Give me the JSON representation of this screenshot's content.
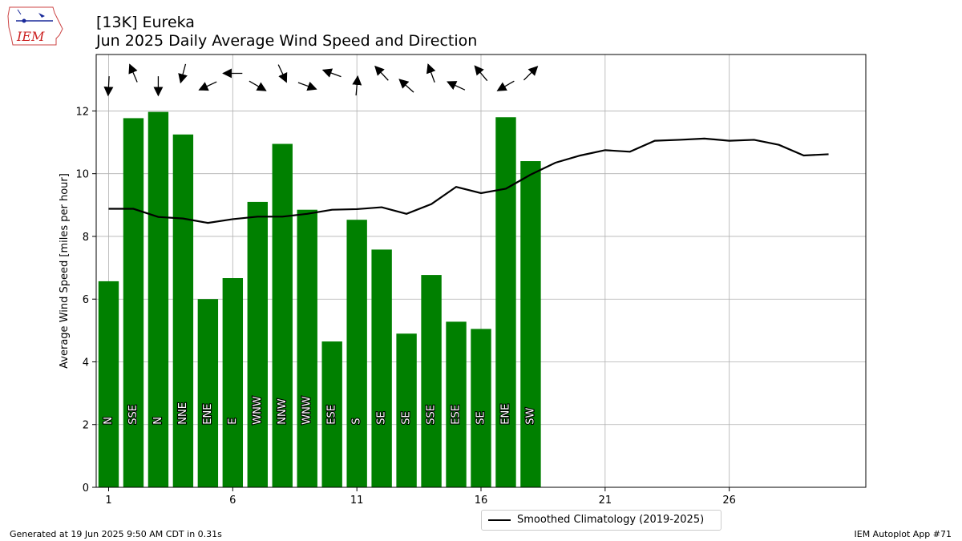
{
  "header": {
    "title_line1": "[13K] Eureka",
    "title_line2": "Jun 2025 Daily Average Wind Speed and Direction"
  },
  "footer": {
    "generated": "Generated at 19 Jun 2025 9:50 AM CDT in 0.31s",
    "app": "IEM Autoplot App #71"
  },
  "logo": {
    "text": "IEM"
  },
  "legend": {
    "label": "Smoothed Climatology (2019-2025)"
  },
  "colors": {
    "bar": "#008000",
    "line": "#000000",
    "grid": "#b0b0b0"
  },
  "chart_data": {
    "type": "bar",
    "ylabel": "Average Wind Speed [miles per hour]",
    "xlim": [
      0.5,
      31.5
    ],
    "ylim": [
      0,
      13.8
    ],
    "xticks": [
      1,
      6,
      11,
      16,
      21,
      26
    ],
    "yticks": [
      0,
      2,
      4,
      6,
      8,
      10,
      12
    ],
    "grid": true,
    "legend_position": "bottom-center",
    "days": [
      1,
      2,
      3,
      4,
      5,
      6,
      7,
      8,
      9,
      10,
      11,
      12,
      13,
      14,
      15,
      16,
      17,
      18
    ],
    "speeds": [
      6.57,
      11.77,
      11.97,
      11.25,
      6.0,
      6.67,
      9.1,
      10.95,
      8.85,
      4.65,
      8.53,
      7.58,
      4.9,
      6.77,
      5.28,
      5.05,
      11.8,
      10.4
    ],
    "directions": [
      "N",
      "SSE",
      "N",
      "NNE",
      "ENE",
      "E",
      "WNW",
      "NNW",
      "WNW",
      "ESE",
      "S",
      "SE",
      "SE",
      "SSE",
      "ESE",
      "SE",
      "ENE",
      "SW"
    ],
    "direction_degrees": [
      3,
      157,
      0,
      15,
      65,
      90,
      300,
      335,
      290,
      110,
      185,
      137,
      132,
      160,
      115,
      140,
      60,
      225
    ],
    "series": [
      {
        "name": "Smoothed Climatology (2019-2025)",
        "x": [
          1,
          2,
          3,
          4,
          5,
          6,
          7,
          8,
          9,
          10,
          11,
          12,
          13,
          14,
          15,
          16,
          17,
          18,
          19,
          20,
          21,
          22,
          23,
          24,
          25,
          26,
          27,
          28,
          29,
          30
        ],
        "values": [
          8.88,
          8.88,
          8.62,
          8.57,
          8.43,
          8.55,
          8.63,
          8.63,
          8.72,
          8.85,
          8.87,
          8.93,
          8.72,
          9.03,
          9.58,
          9.38,
          9.52,
          9.97,
          10.35,
          10.58,
          10.75,
          10.7,
          11.05,
          11.08,
          11.12,
          11.05,
          11.08,
          10.92,
          10.58,
          10.62
        ]
      }
    ]
  }
}
